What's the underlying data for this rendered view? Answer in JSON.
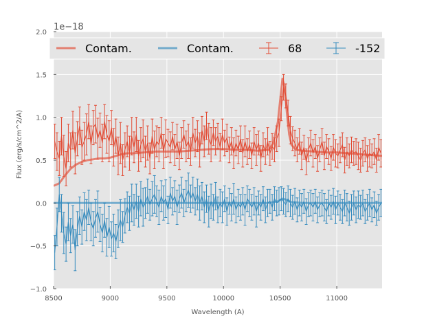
{
  "chart_data": {
    "type": "line",
    "title": "",
    "xlabel": "Wavelength (A)",
    "ylabel": "Flux (erg/s/cm^2/A)",
    "offset_label": "1e−18",
    "xlim": [
      8500,
      11400
    ],
    "ylim": [
      -1.0,
      2.0
    ],
    "xticks": [
      8500,
      9000,
      9500,
      10000,
      10500,
      11000
    ],
    "yticks": [
      -1.0,
      -0.5,
      0.0,
      0.5,
      1.0,
      1.5,
      2.0
    ],
    "xtick_labels": [
      "8500",
      "9000",
      "9500",
      "10000",
      "10500",
      "11000"
    ],
    "ytick_labels": [
      "−1.0",
      "−0.5",
      "0.0",
      "0.5",
      "1.0",
      "1.5",
      "2.0"
    ],
    "grid": true,
    "legend_position": "top",
    "legend": [
      "Contam.",
      "Contam.",
      "68",
      "-152"
    ],
    "colors": {
      "series1": "#E24A33",
      "series2": "#348ABD",
      "axes_bg": "#E5E5E5",
      "grid": "#FFFFFF"
    },
    "contam_series": [
      {
        "name": "Contam.",
        "color": "#E24A33",
        "x": [
          8500,
          8550,
          8600,
          8650,
          8700,
          8750,
          8800,
          8850,
          8900,
          8950,
          9000,
          9050,
          9100,
          9150,
          9200,
          9300,
          9400,
          9500,
          9600,
          9700,
          9800,
          9900,
          10000,
          10100,
          10200,
          10300,
          10400,
          10440,
          10480,
          10500,
          10520,
          10540,
          10560,
          10580,
          10600,
          10640,
          10700,
          10800,
          10900,
          11000,
          11100,
          11200,
          11300,
          11400
        ],
        "values": [
          0.2,
          0.23,
          0.32,
          0.4,
          0.45,
          0.48,
          0.5,
          0.51,
          0.52,
          0.52,
          0.53,
          0.55,
          0.57,
          0.58,
          0.58,
          0.59,
          0.6,
          0.6,
          0.6,
          0.61,
          0.62,
          0.63,
          0.63,
          0.62,
          0.62,
          0.61,
          0.62,
          0.7,
          0.95,
          1.2,
          1.45,
          1.35,
          1.05,
          0.8,
          0.68,
          0.62,
          0.61,
          0.6,
          0.59,
          0.59,
          0.58,
          0.57,
          0.56,
          0.55
        ]
      },
      {
        "name": "Contam.",
        "color": "#348ABD",
        "x": [
          8500,
          8600,
          8800,
          9000,
          9200,
          9400,
          9600,
          9800,
          10000,
          10200,
          10400,
          10480,
          10520,
          10550,
          10600,
          10700,
          10900,
          11100,
          11400
        ],
        "values": [
          0.0,
          0.0,
          0.0,
          0.0,
          0.0,
          0.0,
          0.0,
          0.0,
          0.0,
          0.0,
          0.0,
          0.02,
          0.05,
          0.04,
          0.01,
          0.0,
          0.0,
          0.0,
          0.0
        ]
      }
    ],
    "errorbar_series": [
      {
        "name": "68",
        "color": "#E24A33",
        "x": [
          8510,
          8530,
          8550,
          8570,
          8590,
          8610,
          8630,
          8650,
          8670,
          8690,
          8710,
          8730,
          8750,
          8770,
          8790,
          8810,
          8830,
          8850,
          8870,
          8890,
          8910,
          8930,
          8950,
          8970,
          8990,
          9010,
          9030,
          9050,
          9070,
          9090,
          9110,
          9130,
          9150,
          9170,
          9190,
          9210,
          9230,
          9250,
          9270,
          9290,
          9310,
          9330,
          9350,
          9370,
          9390,
          9410,
          9430,
          9450,
          9470,
          9490,
          9510,
          9530,
          9550,
          9570,
          9590,
          9610,
          9630,
          9650,
          9670,
          9690,
          9710,
          9730,
          9750,
          9770,
          9790,
          9810,
          9830,
          9850,
          9870,
          9890,
          9910,
          9930,
          9950,
          9970,
          9990,
          10010,
          10030,
          10050,
          10070,
          10090,
          10110,
          10130,
          10150,
          10170,
          10190,
          10210,
          10230,
          10250,
          10270,
          10290,
          10310,
          10330,
          10350,
          10370,
          10390,
          10410,
          10430,
          10450,
          10470,
          10490,
          10510,
          10530,
          10550,
          10570,
          10590,
          10610,
          10630,
          10650,
          10670,
          10690,
          10710,
          10730,
          10750,
          10770,
          10790,
          10810,
          10830,
          10850,
          10870,
          10890,
          10910,
          10930,
          10950,
          10970,
          10990,
          11010,
          11030,
          11050,
          11070,
          11090,
          11110,
          11130,
          11150,
          11170,
          11190,
          11210,
          11230,
          11250,
          11270,
          11290,
          11310,
          11330,
          11350,
          11370,
          11390
        ],
        "values": [
          0.72,
          0.6,
          0.52,
          0.78,
          0.55,
          0.4,
          0.7,
          0.62,
          0.85,
          0.58,
          0.75,
          0.9,
          0.65,
          0.72,
          0.8,
          0.95,
          0.68,
          0.88,
          0.92,
          0.75,
          0.85,
          0.7,
          0.95,
          0.8,
          0.72,
          0.88,
          0.65,
          0.78,
          0.55,
          0.7,
          0.5,
          0.62,
          0.72,
          0.58,
          0.78,
          0.65,
          0.8,
          0.55,
          0.68,
          0.75,
          0.6,
          0.7,
          0.52,
          0.78,
          0.62,
          0.72,
          0.68,
          0.82,
          0.6,
          0.75,
          0.7,
          0.65,
          0.78,
          0.62,
          0.72,
          0.55,
          0.7,
          0.8,
          0.66,
          0.72,
          0.6,
          0.82,
          0.7,
          0.78,
          0.62,
          0.85,
          0.72,
          0.9,
          0.75,
          0.68,
          0.82,
          0.72,
          0.78,
          0.65,
          0.8,
          0.7,
          0.76,
          0.62,
          0.72,
          0.58,
          0.7,
          0.62,
          0.75,
          0.58,
          0.72,
          0.6,
          0.68,
          0.55,
          0.72,
          0.62,
          0.7,
          0.52,
          0.68,
          0.6,
          0.72,
          0.58,
          0.66,
          0.62,
          0.75,
          0.82,
          1.1,
          1.35,
          1.25,
          1.05,
          0.85,
          0.75,
          0.7,
          0.62,
          0.72,
          0.55,
          0.65,
          0.48,
          0.62,
          0.7,
          0.58,
          0.66,
          0.52,
          0.62,
          0.72,
          0.55,
          0.66,
          0.6,
          0.52,
          0.65,
          0.58,
          0.55,
          0.62,
          0.68,
          0.5,
          0.6,
          0.55,
          0.62,
          0.58,
          0.6,
          0.55,
          0.5,
          0.58,
          0.62,
          0.52,
          0.58,
          0.55,
          0.6,
          0.5,
          0.65,
          0.58
        ],
        "errors": [
          0.2,
          0.22,
          0.2,
          0.22,
          0.24,
          0.2,
          0.22,
          0.2,
          0.22,
          0.24,
          0.2,
          0.22,
          0.2,
          0.22,
          0.24,
          0.2,
          0.22,
          0.2,
          0.22,
          0.24,
          0.2,
          0.22,
          0.2,
          0.22,
          0.24,
          0.2,
          0.22,
          0.2,
          0.22,
          0.24,
          0.18,
          0.2,
          0.18,
          0.2,
          0.22,
          0.18,
          0.2,
          0.18,
          0.2,
          0.22,
          0.18,
          0.2,
          0.18,
          0.2,
          0.22,
          0.18,
          0.2,
          0.18,
          0.2,
          0.22,
          0.16,
          0.18,
          0.16,
          0.18,
          0.2,
          0.16,
          0.18,
          0.16,
          0.18,
          0.2,
          0.16,
          0.18,
          0.16,
          0.18,
          0.2,
          0.16,
          0.18,
          0.16,
          0.18,
          0.2,
          0.15,
          0.16,
          0.15,
          0.16,
          0.18,
          0.15,
          0.16,
          0.15,
          0.16,
          0.18,
          0.15,
          0.16,
          0.15,
          0.16,
          0.18,
          0.15,
          0.16,
          0.15,
          0.16,
          0.18,
          0.14,
          0.15,
          0.14,
          0.15,
          0.16,
          0.14,
          0.15,
          0.14,
          0.15,
          0.16,
          0.14,
          0.15,
          0.14,
          0.15,
          0.16,
          0.14,
          0.15,
          0.14,
          0.15,
          0.16,
          0.14,
          0.15,
          0.14,
          0.15,
          0.16,
          0.14,
          0.15,
          0.14,
          0.15,
          0.16,
          0.14,
          0.15,
          0.14,
          0.15,
          0.16,
          0.14,
          0.15,
          0.14,
          0.15,
          0.16,
          0.14,
          0.15,
          0.14,
          0.15,
          0.16,
          0.14,
          0.15,
          0.14,
          0.15,
          0.16,
          0.14,
          0.15,
          0.14,
          0.15,
          0.16
        ]
      },
      {
        "name": "-152",
        "color": "#348ABD",
        "x": [
          8510,
          8530,
          8550,
          8570,
          8590,
          8610,
          8630,
          8650,
          8670,
          8690,
          8710,
          8730,
          8750,
          8770,
          8790,
          8810,
          8830,
          8850,
          8870,
          8890,
          8910,
          8930,
          8950,
          8970,
          8990,
          9010,
          9030,
          9050,
          9070,
          9090,
          9110,
          9130,
          9150,
          9170,
          9190,
          9210,
          9230,
          9250,
          9270,
          9290,
          9310,
          9330,
          9350,
          9370,
          9390,
          9410,
          9430,
          9450,
          9470,
          9490,
          9510,
          9530,
          9550,
          9570,
          9590,
          9610,
          9630,
          9650,
          9670,
          9690,
          9710,
          9730,
          9750,
          9770,
          9790,
          9810,
          9830,
          9850,
          9870,
          9890,
          9910,
          9930,
          9950,
          9970,
          9990,
          10010,
          10030,
          10050,
          10070,
          10090,
          10110,
          10130,
          10150,
          10170,
          10190,
          10210,
          10230,
          10250,
          10270,
          10290,
          10310,
          10330,
          10350,
          10370,
          10390,
          10410,
          10430,
          10450,
          10470,
          10490,
          10510,
          10530,
          10550,
          10570,
          10590,
          10610,
          10630,
          10650,
          10670,
          10690,
          10710,
          10730,
          10750,
          10770,
          10790,
          10810,
          10830,
          10850,
          10870,
          10890,
          10910,
          10930,
          10950,
          10970,
          10990,
          11010,
          11030,
          11050,
          11070,
          11090,
          11110,
          11130,
          11150,
          11170,
          11190,
          11210,
          11230,
          11250,
          11270,
          11290,
          11310,
          11330,
          11350,
          11370,
          11390
        ],
        "values": [
          -0.58,
          -0.28,
          0.1,
          -0.12,
          -0.35,
          -0.48,
          -0.22,
          -0.38,
          -0.25,
          -0.55,
          -0.3,
          -0.15,
          -0.28,
          -0.1,
          -0.2,
          -0.05,
          -0.22,
          -0.3,
          -0.18,
          -0.1,
          -0.25,
          -0.35,
          -0.2,
          -0.4,
          -0.28,
          -0.42,
          -0.35,
          -0.45,
          -0.3,
          -0.2,
          -0.28,
          -0.15,
          -0.05,
          -0.12,
          0.0,
          -0.08,
          0.02,
          -0.1,
          0.05,
          -0.05,
          0.0,
          0.08,
          -0.02,
          0.05,
          0.1,
          0.02,
          -0.05,
          0.08,
          0.0,
          0.05,
          -0.08,
          0.12,
          0.02,
          0.08,
          -0.05,
          0.05,
          0.12,
          0.0,
          0.08,
          0.15,
          0.05,
          0.12,
          0.02,
          0.1,
          0.0,
          0.08,
          -0.05,
          0.05,
          -0.1,
          0.02,
          -0.05,
          0.08,
          -0.08,
          0.0,
          -0.05,
          0.05,
          -0.1,
          0.02,
          -0.05,
          0.05,
          -0.08,
          0.0,
          -0.05,
          0.02,
          -0.08,
          0.05,
          0.0,
          -0.05,
          0.02,
          -0.1,
          0.0,
          -0.05,
          0.05,
          -0.08,
          0.0,
          0.02,
          -0.05,
          0.05,
          0.0,
          0.02,
          0.05,
          0.02,
          -0.02,
          0.05,
          0.0,
          -0.05,
          0.02,
          -0.08,
          0.0,
          -0.05,
          0.02,
          -0.1,
          -0.02,
          0.0,
          -0.05,
          0.02,
          -0.08,
          -0.02,
          0.0,
          -0.05,
          -0.1,
          0.0,
          -0.05,
          0.02,
          -0.08,
          0.0,
          -0.05,
          -0.1,
          0.0,
          -0.05,
          -0.12,
          -0.05,
          0.0,
          -0.08,
          -0.02,
          -0.05,
          0.0,
          -0.1,
          -0.05,
          0.0,
          -0.08,
          -0.02,
          -0.12,
          -0.05,
          0.0
        ],
        "errors": [
          0.2,
          0.22,
          0.2,
          0.22,
          0.24,
          0.2,
          0.22,
          0.2,
          0.22,
          0.24,
          0.2,
          0.22,
          0.2,
          0.22,
          0.24,
          0.2,
          0.22,
          0.2,
          0.22,
          0.24,
          0.2,
          0.22,
          0.2,
          0.22,
          0.24,
          0.2,
          0.22,
          0.2,
          0.22,
          0.24,
          0.18,
          0.2,
          0.18,
          0.2,
          0.22,
          0.18,
          0.2,
          0.18,
          0.2,
          0.22,
          0.18,
          0.2,
          0.18,
          0.2,
          0.22,
          0.18,
          0.2,
          0.18,
          0.2,
          0.22,
          0.16,
          0.18,
          0.16,
          0.18,
          0.2,
          0.16,
          0.18,
          0.16,
          0.18,
          0.2,
          0.16,
          0.18,
          0.16,
          0.18,
          0.2,
          0.16,
          0.18,
          0.16,
          0.18,
          0.2,
          0.15,
          0.16,
          0.15,
          0.16,
          0.18,
          0.15,
          0.16,
          0.15,
          0.16,
          0.18,
          0.15,
          0.16,
          0.15,
          0.16,
          0.18,
          0.15,
          0.16,
          0.15,
          0.16,
          0.18,
          0.14,
          0.15,
          0.14,
          0.15,
          0.16,
          0.14,
          0.15,
          0.14,
          0.15,
          0.16,
          0.14,
          0.15,
          0.14,
          0.15,
          0.16,
          0.14,
          0.15,
          0.14,
          0.15,
          0.16,
          0.14,
          0.15,
          0.14,
          0.15,
          0.16,
          0.14,
          0.15,
          0.14,
          0.15,
          0.16,
          0.14,
          0.15,
          0.14,
          0.15,
          0.16,
          0.14,
          0.15,
          0.14,
          0.15,
          0.16,
          0.14,
          0.15,
          0.14,
          0.15,
          0.16,
          0.14,
          0.15,
          0.14,
          0.15,
          0.16,
          0.14,
          0.15,
          0.14,
          0.15,
          0.16
        ]
      }
    ]
  }
}
